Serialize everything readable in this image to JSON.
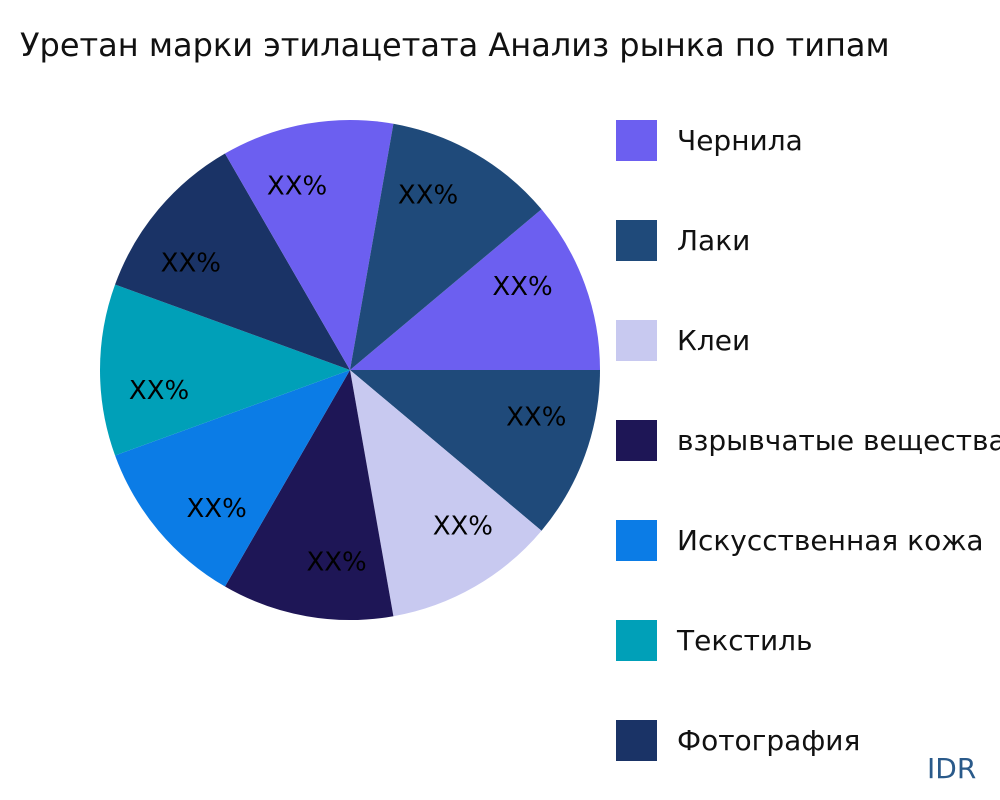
{
  "chart_data": {
    "type": "pie",
    "title": "Уретан марки этилацетата Анализ рынка по типам",
    "slices": [
      {
        "category": "Чернила",
        "value": 1,
        "label": "XX%",
        "color": "#6c5ff0"
      },
      {
        "category": "Лаки",
        "value": 1,
        "label": "XX%",
        "color": "#1f4a7a"
      },
      {
        "category": "Клеи",
        "value": 1,
        "label": "XX%",
        "color": "#c8c9f0"
      },
      {
        "category": "взрывчатые вещества",
        "value": 1,
        "label": "XX%",
        "color": "#1e1656"
      },
      {
        "category": "Искусственная кожа",
        "value": 1,
        "label": "XX%",
        "color": "#0b7ce6"
      },
      {
        "category": "Текстиль",
        "value": 1,
        "label": "XX%",
        "color": "#00a0b8"
      },
      {
        "category": "Фотография",
        "value": 1,
        "label": "XX%",
        "color": "#1a3366"
      },
      {
        "category": "Чернила",
        "value": 1,
        "label": "XX%",
        "color": "#6c5ff0"
      },
      {
        "category": "Лаки",
        "value": 1,
        "label": "XX%",
        "color": "#1f4a7a"
      }
    ],
    "legend": {
      "placement": "right",
      "entries": [
        {
          "label": "Чернила",
          "color": "#6c5ff0"
        },
        {
          "label": "Лаки",
          "color": "#1f4a7a"
        },
        {
          "label": "Клеи",
          "color": "#c8c9f0"
        },
        {
          "label": "взрывчатые вещества",
          "color": "#1e1656"
        },
        {
          "label": "Искусственная кожа",
          "color": "#0b7ce6"
        },
        {
          "label": "Текстиль",
          "color": "#00a0b8"
        },
        {
          "label": "Фотография",
          "color": "#1a3366"
        }
      ]
    }
  },
  "brand": "IDR"
}
